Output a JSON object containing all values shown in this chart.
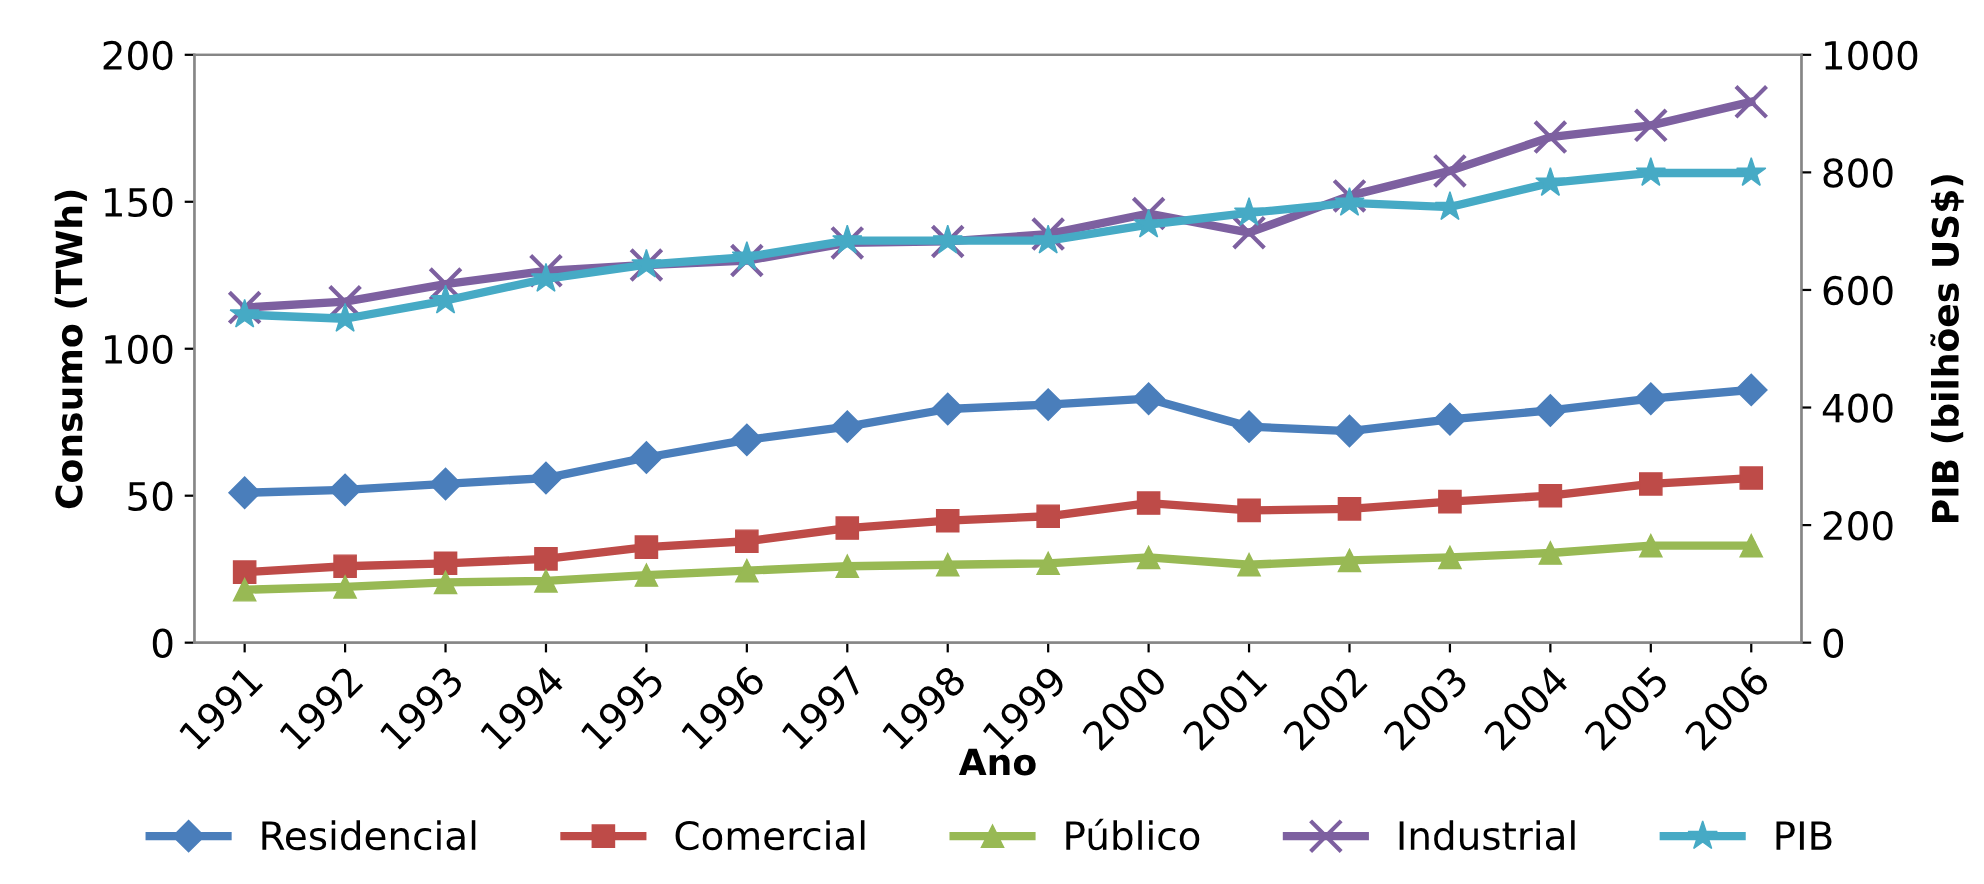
{
  "chart_data": {
    "type": "line",
    "xlabel": "Ano",
    "ylabel": "Consumo (TWh)",
    "y2label": "PIB (bilhões US$)",
    "categories": [
      "1991",
      "1992",
      "1993",
      "1994",
      "1995",
      "1996",
      "1997",
      "1998",
      "1999",
      "2000",
      "2001",
      "2002",
      "2003",
      "2004",
      "2005",
      "2006"
    ],
    "series": [
      {
        "name": "Residencial",
        "color": "#4a7ebb",
        "marker": "diamond",
        "values": [
          51,
          52,
          54,
          56,
          63,
          69,
          73.5,
          79.5,
          81,
          83,
          73.5,
          72,
          76,
          79,
          83,
          86
        ]
      },
      {
        "name": "Comercial",
        "color": "#be4b48",
        "marker": "square",
        "values": [
          24,
          26,
          27,
          28.5,
          32.5,
          34.5,
          39,
          41.5,
          43,
          47.5,
          45,
          45.5,
          48,
          50,
          54,
          56
        ]
      },
      {
        "name": "Público",
        "color": "#98b954",
        "marker": "triangle",
        "values": [
          18,
          19,
          20.5,
          21,
          23,
          24.5,
          26,
          26.5,
          27,
          29,
          26.5,
          28,
          29,
          30.5,
          33,
          33
        ]
      },
      {
        "name": "Industrial",
        "color": "#7d60a0",
        "marker": "cross",
        "values": [
          114,
          116,
          122,
          126.5,
          128.5,
          130,
          136,
          136.5,
          139,
          146,
          139.5,
          152,
          160.5,
          172,
          176,
          184
        ]
      },
      {
        "name": "PIB",
        "color": "#46aac5",
        "marker": "star",
        "axis": "y2",
        "values": [
          558,
          551,
          582,
          619,
          643,
          656,
          684,
          684,
          684,
          711,
          731,
          748,
          741,
          782,
          799,
          799
        ]
      }
    ],
    "ylim": [
      0,
      200
    ],
    "yticks": [
      0,
      50,
      100,
      150,
      200
    ],
    "y2lim": [
      0,
      1000
    ],
    "y2ticks": [
      0,
      200,
      400,
      600,
      800,
      1000
    ],
    "grid": false,
    "legend": "bottom",
    "line_style": "solid"
  }
}
